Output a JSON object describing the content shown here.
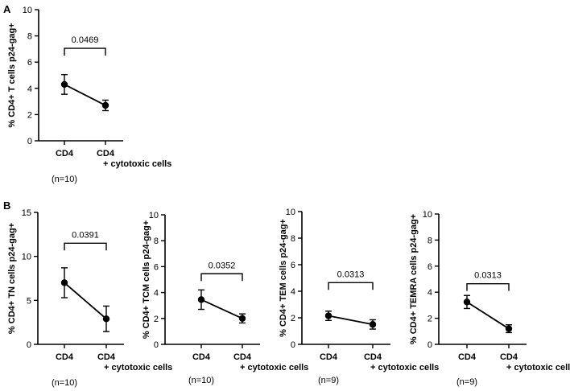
{
  "panels": [
    {
      "label": "A"
    },
    {
      "label": "B"
    }
  ],
  "chart_data": [
    {
      "type": "line",
      "panel": "A",
      "ylabel": "% CD4+ T cells p24-gag+",
      "ylim": [
        0,
        10
      ],
      "yticks": [
        0,
        2,
        4,
        6,
        8,
        10
      ],
      "categories": [
        "CD4",
        "+ cytotoxic cells"
      ],
      "category_lines": [
        [
          "CD4"
        ],
        [
          "CD4",
          "+ cytotoxic cells"
        ]
      ],
      "series": [
        {
          "name": "mean",
          "values": [
            4.3,
            2.7
          ],
          "errors": [
            0.75,
            0.4
          ]
        }
      ],
      "pvalue": "0.0469",
      "n": "(n=10)"
    },
    {
      "type": "line",
      "panel": "B",
      "ylabel": "% CD4+ TN cells p24-gag+",
      "ylim": [
        0,
        15
      ],
      "yticks": [
        0,
        5,
        10,
        15
      ],
      "categories": [
        "CD4",
        "+ cytotoxic cells"
      ],
      "category_lines": [
        [
          "CD4"
        ],
        [
          "CD4",
          "+ cytotoxic cells"
        ]
      ],
      "series": [
        {
          "name": "mean",
          "values": [
            7.0,
            2.9
          ],
          "errors": [
            1.7,
            1.45
          ]
        }
      ],
      "pvalue": "0.0391",
      "n": "(n=10)"
    },
    {
      "type": "line",
      "panel": "B",
      "ylabel": "% CD4+ TCM cells p24-gag+",
      "ylim": [
        0,
        10
      ],
      "yticks": [
        0,
        2,
        4,
        6,
        8,
        10
      ],
      "categories": [
        "CD4",
        "+ cytotoxic cells"
      ],
      "category_lines": [
        [
          "CD4"
        ],
        [
          "CD4",
          "+ cytotoxic cells"
        ]
      ],
      "series": [
        {
          "name": "mean",
          "values": [
            3.45,
            2.0
          ],
          "errors": [
            0.75,
            0.35
          ]
        }
      ],
      "pvalue": "0.0352",
      "n": "(n=10)"
    },
    {
      "type": "line",
      "panel": "B",
      "ylabel": "% CD4+ TEM cells p24-gag+",
      "ylim": [
        0,
        10
      ],
      "yticks": [
        0,
        2,
        4,
        6,
        8,
        10
      ],
      "categories": [
        "CD4",
        "+ cytotoxic cells"
      ],
      "category_lines": [
        [
          "CD4"
        ],
        [
          "CD4",
          "+ cytotoxic cells"
        ]
      ],
      "series": [
        {
          "name": "mean",
          "values": [
            2.15,
            1.5
          ],
          "errors": [
            0.35,
            0.35
          ]
        }
      ],
      "pvalue": "0.0313",
      "n": "(n=9)"
    },
    {
      "type": "line",
      "panel": "B",
      "ylabel": "% CD4+ TEMRA cells p24-gag+",
      "ylim": [
        0,
        10
      ],
      "yticks": [
        0,
        2,
        4,
        6,
        8,
        10
      ],
      "categories": [
        "CD4",
        "+ cytotoxic cells"
      ],
      "category_lines": [
        [
          "CD4"
        ],
        [
          "CD4",
          "+ cytotoxic cells"
        ]
      ],
      "series": [
        {
          "name": "mean",
          "values": [
            3.25,
            1.2
          ],
          "errors": [
            0.5,
            0.3
          ]
        }
      ],
      "pvalue": "0.0313",
      "n": "(n=9)"
    }
  ]
}
